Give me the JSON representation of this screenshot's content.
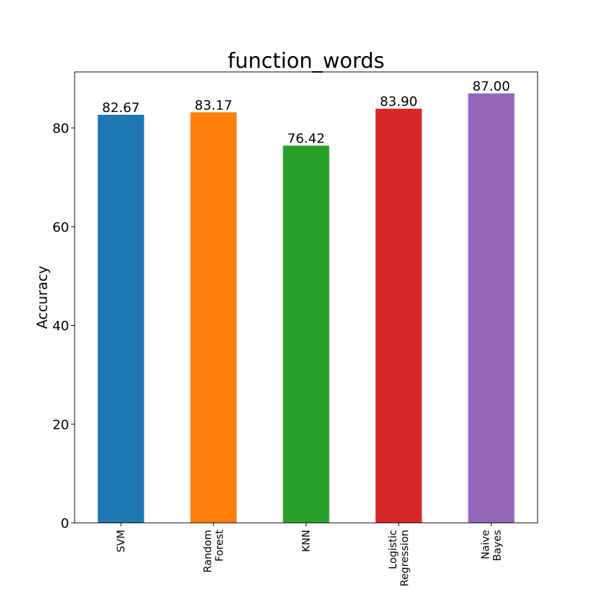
{
  "chart_data": {
    "type": "bar",
    "title": "function_words",
    "xlabel": "",
    "ylabel": "Accuracy",
    "categories": [
      [
        "SVM"
      ],
      [
        "Random",
        "Forest"
      ],
      [
        "KNN"
      ],
      [
        "Logistic",
        "Regression"
      ],
      [
        "Naive",
        "Bayes"
      ]
    ],
    "values": [
      82.67,
      83.17,
      76.42,
      83.9,
      87.0
    ],
    "value_labels": [
      "82.67",
      "83.17",
      "76.42",
      "83.90",
      "87.00"
    ],
    "colors": [
      "#1f77b4",
      "#ff7f0e",
      "#2ca02c",
      "#d62728",
      "#9467bd"
    ],
    "yticks": [
      0,
      20,
      40,
      60,
      80
    ],
    "ylim": [
      0,
      91.35
    ],
    "grid": false,
    "legend": "none"
  }
}
